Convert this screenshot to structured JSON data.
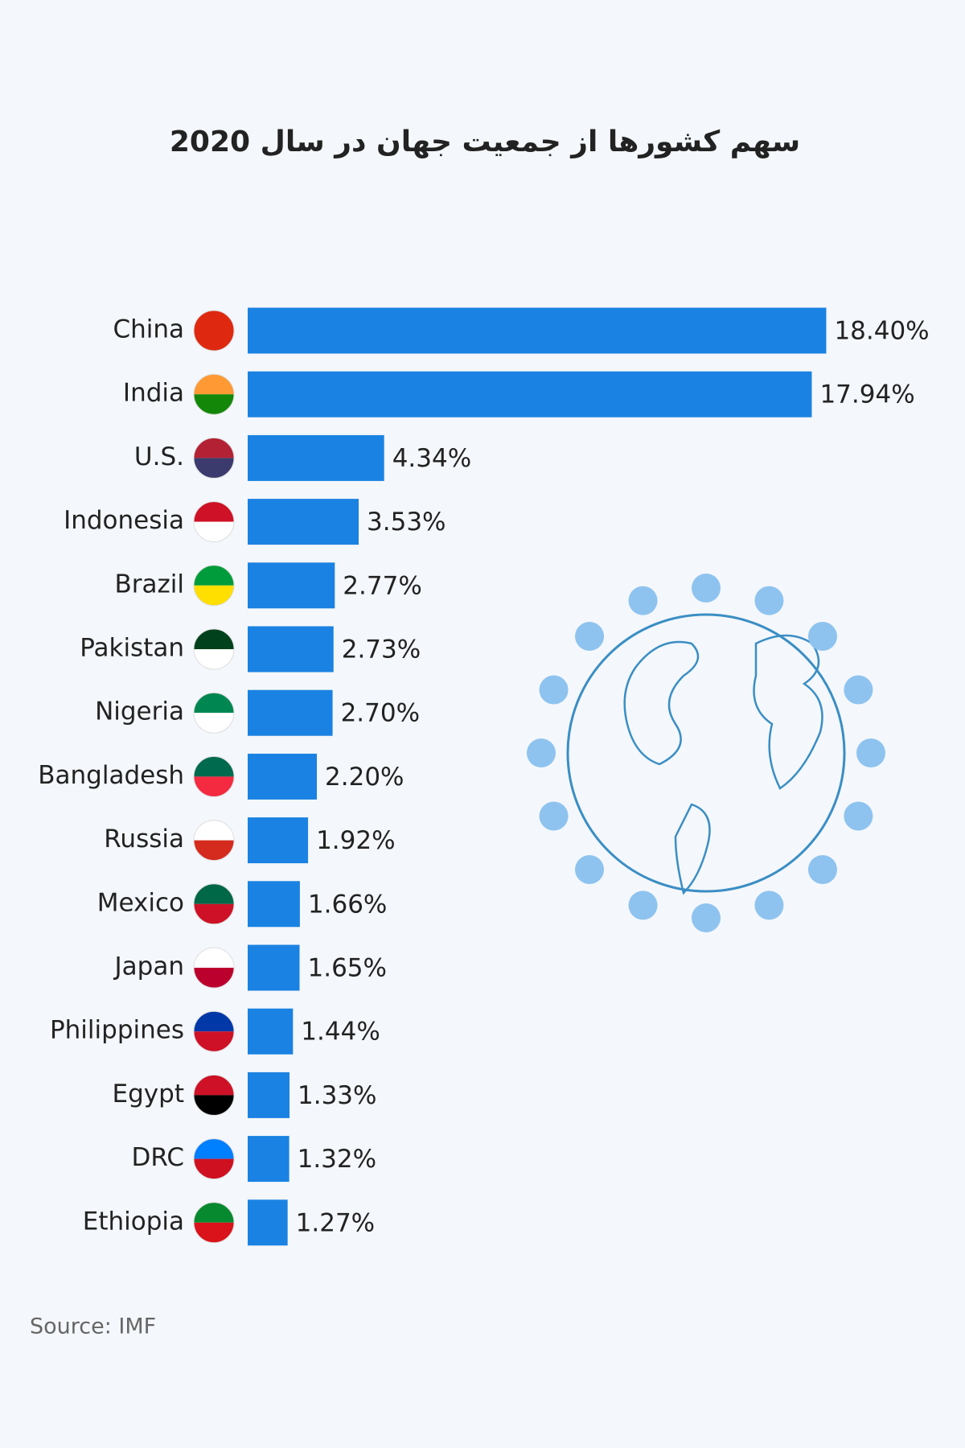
{
  "chart_data": {
    "type": "bar",
    "orientation": "horizontal",
    "title": "سهم کشورها از جمعیت جهان در سال 2020",
    "categories": [
      "China",
      "India",
      "U.S.",
      "Indonesia",
      "Brazil",
      "Pakistan",
      "Nigeria",
      "Bangladesh",
      "Russia",
      "Mexico",
      "Japan",
      "Philippines",
      "Egypt",
      "DRC",
      "Ethiopia"
    ],
    "values": [
      18.4,
      17.94,
      4.34,
      3.53,
      2.77,
      2.73,
      2.7,
      2.2,
      1.92,
      1.66,
      1.65,
      1.44,
      1.33,
      1.32,
      1.27
    ],
    "value_labels": [
      "18.40%",
      "17.94%",
      "4.34%",
      "3.53%",
      "2.77%",
      "2.73%",
      "2.70%",
      "2.20%",
      "1.92%",
      "1.66%",
      "1.65%",
      "1.44%",
      "1.33%",
      "1.32%",
      "1.27%"
    ],
    "color": "#1a82e2",
    "source": "Source: IMF"
  }
}
